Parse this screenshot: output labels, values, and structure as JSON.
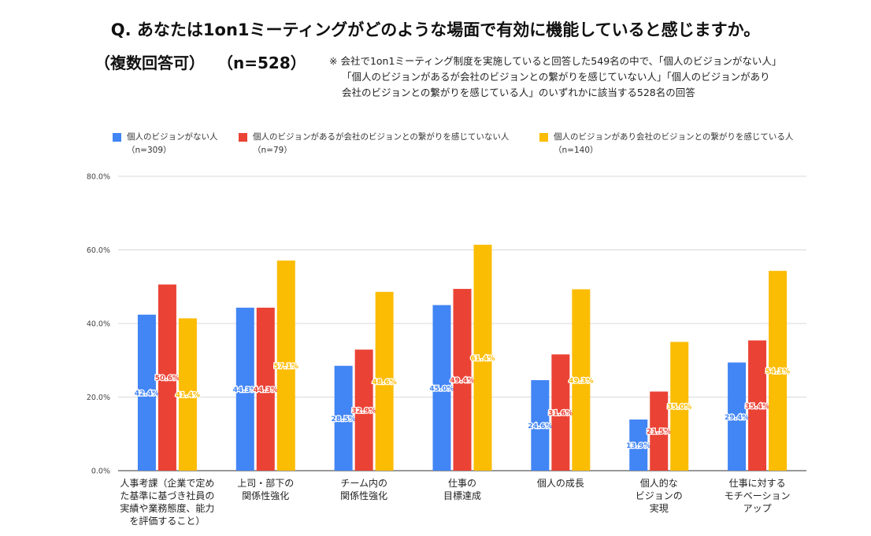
{
  "header": {
    "title": "Q. あなたは1on1ミーティングがどのような場面で有効に機能していると感じますか。",
    "subtitle_main": "（複数回答可）",
    "subtitle_n": "（n=528）",
    "note_lines": [
      "※ 会社で1on1ミーティング制度を実施していると回答した549名の中で、「個人のビジョンがない人」",
      "「個人のビジョンがあるが会社のビジョンとの繋がりを感じていない人」「個人のビジョンがあり",
      "会社のビジョンとの繋がりを感じている人」のいずれかに該当する528名の回答"
    ]
  },
  "legend": [
    {
      "label": "個人のビジョンがない人",
      "n": "（n=309）",
      "color": "#4285f4"
    },
    {
      "label": "個人のビジョンがあるが会社のビジョンとの繋がりを感じていない人",
      "n": "（n=79）",
      "color": "#ea4335"
    },
    {
      "label": "個人のビジョンがあり会社のビジョンとの繋がりを感じている人",
      "n": "（n=140）",
      "color": "#fbbc04"
    }
  ],
  "chart_data": {
    "type": "bar",
    "ylim": [
      0,
      80
    ],
    "ytick_labels": [
      "0.0%",
      "20.0%",
      "40.0%",
      "60.0%",
      "80.0%"
    ],
    "ytick_values": [
      0,
      20,
      40,
      60,
      80
    ],
    "categories": [
      [
        "人事考課（企業で定め",
        "た基準に基づき社員の",
        "実績や業務態度、能力",
        "を評価すること）"
      ],
      [
        "上司・部下の",
        "関係性強化"
      ],
      [
        "チーム内の",
        "関係性強化"
      ],
      [
        "仕事の",
        "目標達成"
      ],
      [
        "個人の成長"
      ],
      [
        "個人的な",
        "ビジョンの",
        "実現"
      ],
      [
        "仕事に対する",
        "モチベーション",
        "アップ"
      ]
    ],
    "series": [
      {
        "name": "個人のビジョンがない人",
        "color": "#4285f4",
        "values": [
          42.4,
          44.3,
          28.5,
          45.0,
          24.6,
          13.9,
          29.4
        ],
        "labels": [
          "42.4%",
          "44.3%",
          "28.5%",
          "45.0%",
          "24.6%",
          "13.9%",
          "29.4%"
        ]
      },
      {
        "name": "個人のビジョンがあるが会社のビジョンとの繋がりを感じていない人",
        "color": "#ea4335",
        "values": [
          50.6,
          44.3,
          32.9,
          49.4,
          31.6,
          21.5,
          35.4
        ],
        "labels": [
          "50.6%",
          "44.3%",
          "32.9%",
          "49.4%",
          "31.6%",
          "21.5%",
          "35.4%"
        ]
      },
      {
        "name": "個人のビジョンがあり会社のビジョンとの繋がりを感じている人",
        "color": "#fbbc04",
        "values": [
          41.4,
          57.1,
          48.6,
          61.4,
          49.3,
          35.0,
          54.3
        ],
        "labels": [
          "41.4%",
          "57.1%",
          "48.6%",
          "61.4%",
          "49.3%",
          "35.0%",
          "54.3%"
        ]
      }
    ]
  }
}
